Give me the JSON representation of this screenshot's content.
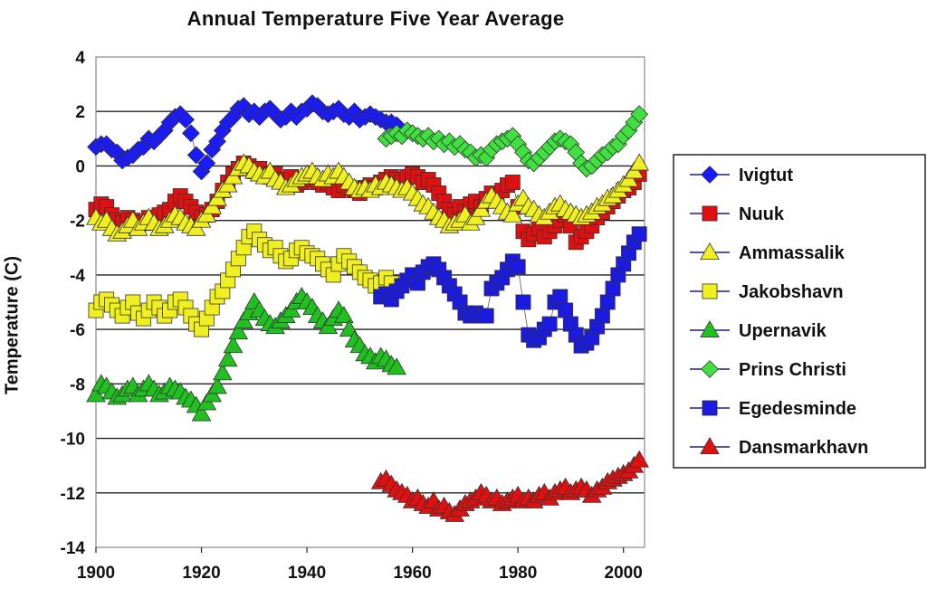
{
  "chart_data": {
    "type": "scatter",
    "title": "Annual Temperature Five Year Average",
    "xlabel": "",
    "ylabel": "Temperature (C)",
    "xlim": [
      1900,
      2004
    ],
    "ylim": [
      -14,
      4
    ],
    "xticks": [
      "1900",
      "1920",
      "1940",
      "1960",
      "1980",
      "2000"
    ],
    "yticks": [
      "4",
      "2",
      "0",
      "-2",
      "-4",
      "-6",
      "-8",
      "-10",
      "-12",
      "-14"
    ],
    "grid": "horizontal",
    "legend_position": "right",
    "series": [
      {
        "name": "Ivigtut",
        "marker": "diamond",
        "color": "#1a1aff",
        "x": [
          1900,
          1901,
          1902,
          1903,
          1904,
          1905,
          1906,
          1907,
          1908,
          1909,
          1910,
          1911,
          1912,
          1913,
          1914,
          1915,
          1916,
          1917,
          1918,
          1919,
          1920,
          1921,
          1922,
          1923,
          1924,
          1925,
          1926,
          1927,
          1928,
          1929,
          1930,
          1931,
          1932,
          1933,
          1934,
          1935,
          1936,
          1937,
          1938,
          1939,
          1940,
          1941,
          1942,
          1943,
          1944,
          1945,
          1946,
          1947,
          1948,
          1949,
          1950,
          1951,
          1952,
          1953,
          1954,
          1955,
          1956,
          1957
        ],
        "y": [
          0.7,
          0.8,
          0.8,
          0.6,
          0.5,
          0.2,
          0.3,
          0.4,
          0.6,
          0.7,
          1.0,
          0.9,
          1.1,
          1.3,
          1.6,
          1.8,
          1.9,
          1.7,
          1.2,
          0.4,
          -0.2,
          0.1,
          0.6,
          0.9,
          1.3,
          1.6,
          1.8,
          2.1,
          2.2,
          1.9,
          2.0,
          1.8,
          2.0,
          2.1,
          1.9,
          1.7,
          1.8,
          2.0,
          1.8,
          2.0,
          2.1,
          2.3,
          2.2,
          2.0,
          1.9,
          2.0,
          2.1,
          1.9,
          1.8,
          2.0,
          1.7,
          1.8,
          1.9,
          1.8,
          1.7,
          1.6,
          1.6,
          1.5
        ]
      },
      {
        "name": "Nuuk",
        "marker": "square",
        "color": "#e01010",
        "x": [
          1900,
          1901,
          1902,
          1903,
          1904,
          1905,
          1906,
          1907,
          1908,
          1909,
          1910,
          1911,
          1912,
          1913,
          1914,
          1915,
          1916,
          1917,
          1918,
          1919,
          1920,
          1921,
          1922,
          1923,
          1924,
          1925,
          1926,
          1927,
          1928,
          1929,
          1930,
          1931,
          1932,
          1933,
          1934,
          1935,
          1936,
          1937,
          1938,
          1939,
          1940,
          1941,
          1942,
          1943,
          1944,
          1945,
          1946,
          1947,
          1948,
          1949,
          1950,
          1951,
          1952,
          1953,
          1954,
          1955,
          1956,
          1957,
          1958,
          1959,
          1960,
          1961,
          1962,
          1963,
          1964,
          1965,
          1966,
          1967,
          1968,
          1969,
          1970,
          1971,
          1972,
          1973,
          1974,
          1975,
          1976,
          1977,
          1978,
          1979,
          1980,
          1981,
          1982,
          1983,
          1984,
          1985,
          1986,
          1987,
          1988,
          1989,
          1990,
          1991,
          1992,
          1993,
          1994,
          1995,
          1996,
          1997,
          1998,
          1999,
          2000,
          2001,
          2002,
          2003
        ],
        "y": [
          -1.6,
          -1.4,
          -1.5,
          -1.8,
          -2.0,
          -2.1,
          -1.9,
          -2.0,
          -2.2,
          -2.1,
          -1.9,
          -2.0,
          -1.8,
          -1.7,
          -1.6,
          -1.3,
          -1.1,
          -1.3,
          -1.5,
          -1.7,
          -1.9,
          -1.8,
          -1.6,
          -1.3,
          -0.9,
          -0.6,
          -0.3,
          -0.1,
          0.1,
          0.0,
          -0.2,
          -0.1,
          -0.3,
          -0.4,
          -0.3,
          -0.5,
          -0.6,
          -0.4,
          -0.7,
          -0.6,
          -0.5,
          -0.4,
          -0.6,
          -0.7,
          -0.6,
          -0.8,
          -0.9,
          -0.7,
          -0.8,
          -0.9,
          -1.0,
          -0.8,
          -0.7,
          -0.8,
          -0.6,
          -0.5,
          -0.4,
          -0.5,
          -0.6,
          -0.4,
          -0.3,
          -0.4,
          -0.6,
          -0.5,
          -0.7,
          -1.0,
          -1.3,
          -1.6,
          -1.8,
          -1.5,
          -1.7,
          -1.4,
          -1.3,
          -1.5,
          -1.2,
          -1.0,
          -1.1,
          -0.9,
          -0.7,
          -0.6,
          -1.5,
          -2.4,
          -2.7,
          -2.5,
          -2.3,
          -2.6,
          -2.4,
          -2.2,
          -2.0,
          -1.8,
          -2.2,
          -2.8,
          -2.6,
          -2.4,
          -2.2,
          -1.9,
          -1.7,
          -1.5,
          -1.3,
          -1.1,
          -0.9,
          -0.8,
          -0.6,
          -0.3
        ]
      },
      {
        "name": "Ammassalik",
        "marker": "triangle",
        "color": "#f0f020",
        "x": [
          1900,
          1901,
          1902,
          1903,
          1904,
          1905,
          1906,
          1907,
          1908,
          1909,
          1910,
          1911,
          1912,
          1913,
          1914,
          1915,
          1916,
          1917,
          1918,
          1919,
          1920,
          1921,
          1922,
          1923,
          1924,
          1925,
          1926,
          1927,
          1928,
          1929,
          1930,
          1931,
          1932,
          1933,
          1934,
          1935,
          1936,
          1937,
          1938,
          1939,
          1940,
          1941,
          1942,
          1943,
          1944,
          1945,
          1946,
          1947,
          1948,
          1949,
          1950,
          1951,
          1952,
          1953,
          1954,
          1955,
          1956,
          1957,
          1958,
          1959,
          1960,
          1961,
          1962,
          1963,
          1964,
          1965,
          1966,
          1967,
          1968,
          1969,
          1970,
          1971,
          1972,
          1973,
          1974,
          1975,
          1976,
          1977,
          1978,
          1979,
          1980,
          1981,
          1982,
          1983,
          1984,
          1985,
          1986,
          1987,
          1988,
          1989,
          1990,
          1991,
          1992,
          1993,
          1994,
          1995,
          1996,
          1997,
          1998,
          1999,
          2000,
          2001,
          2002,
          2003
        ],
        "y": [
          -1.9,
          -2.1,
          -2.0,
          -2.3,
          -2.5,
          -2.4,
          -2.2,
          -2.0,
          -2.3,
          -2.1,
          -1.9,
          -2.1,
          -2.3,
          -2.2,
          -2.0,
          -1.8,
          -1.9,
          -2.1,
          -2.2,
          -2.3,
          -2.0,
          -1.8,
          -1.5,
          -1.2,
          -0.9,
          -0.7,
          -0.4,
          -0.1,
          0.1,
          0.0,
          -0.2,
          -0.3,
          -0.4,
          -0.2,
          -0.5,
          -0.6,
          -0.8,
          -0.7,
          -0.5,
          -0.4,
          -0.3,
          -0.2,
          -0.4,
          -0.5,
          -0.3,
          -0.4,
          -0.2,
          -0.4,
          -0.6,
          -0.8,
          -0.9,
          -0.8,
          -0.9,
          -0.7,
          -0.8,
          -0.6,
          -0.7,
          -0.8,
          -0.9,
          -0.8,
          -1.0,
          -1.2,
          -1.4,
          -1.5,
          -1.7,
          -1.9,
          -2.0,
          -2.2,
          -2.1,
          -2.0,
          -1.8,
          -2.1,
          -1.9,
          -1.6,
          -1.3,
          -1.1,
          -1.3,
          -1.5,
          -1.7,
          -1.8,
          -1.4,
          -1.2,
          -1.5,
          -1.6,
          -1.8,
          -1.9,
          -1.7,
          -1.5,
          -1.4,
          -1.6,
          -1.7,
          -1.8,
          -1.9,
          -1.8,
          -1.7,
          -1.5,
          -1.4,
          -1.2,
          -1.1,
          -0.9,
          -0.7,
          -0.5,
          -0.2,
          0.1
        ]
      },
      {
        "name": "Jakobshavn",
        "marker": "square",
        "color": "#f0f020",
        "x": [
          1900,
          1901,
          1902,
          1903,
          1904,
          1905,
          1906,
          1907,
          1908,
          1909,
          1910,
          1911,
          1912,
          1913,
          1914,
          1915,
          1916,
          1917,
          1918,
          1919,
          1920,
          1921,
          1922,
          1923,
          1924,
          1925,
          1926,
          1927,
          1928,
          1929,
          1930,
          1931,
          1932,
          1933,
          1934,
          1935,
          1936,
          1937,
          1938,
          1939,
          1940,
          1941,
          1942,
          1943,
          1944,
          1945,
          1946,
          1947,
          1948,
          1949,
          1950,
          1951,
          1952,
          1953,
          1954,
          1955,
          1956
        ],
        "y": [
          -5.3,
          -5.0,
          -4.9,
          -5.1,
          -5.3,
          -5.5,
          -5.2,
          -5.0,
          -5.4,
          -5.6,
          -5.3,
          -5.0,
          -5.2,
          -5.5,
          -5.3,
          -5.0,
          -4.9,
          -5.2,
          -5.5,
          -5.8,
          -6.0,
          -5.6,
          -5.2,
          -4.8,
          -4.6,
          -4.2,
          -3.8,
          -3.4,
          -3.0,
          -2.6,
          -2.4,
          -2.7,
          -2.9,
          -3.1,
          -3.0,
          -3.3,
          -3.5,
          -3.4,
          -3.1,
          -3.0,
          -3.2,
          -3.3,
          -3.4,
          -3.6,
          -3.8,
          -4.0,
          -3.6,
          -3.3,
          -3.5,
          -3.7,
          -3.9,
          -4.1,
          -4.2,
          -4.4,
          -4.3,
          -4.1,
          -4.3
        ]
      },
      {
        "name": "Upernavik",
        "marker": "triangle",
        "color": "#20c020",
        "x": [
          1900,
          1901,
          1902,
          1903,
          1904,
          1905,
          1906,
          1907,
          1908,
          1909,
          1910,
          1911,
          1912,
          1913,
          1914,
          1915,
          1916,
          1917,
          1918,
          1919,
          1920,
          1921,
          1922,
          1923,
          1924,
          1925,
          1926,
          1927,
          1928,
          1929,
          1930,
          1931,
          1932,
          1933,
          1934,
          1935,
          1936,
          1937,
          1938,
          1939,
          1940,
          1941,
          1942,
          1943,
          1944,
          1945,
          1946,
          1947,
          1948,
          1949,
          1950,
          1951,
          1952,
          1953,
          1954,
          1955,
          1956,
          1957
        ],
        "y": [
          -8.4,
          -8.0,
          -8.1,
          -8.3,
          -8.5,
          -8.4,
          -8.2,
          -8.1,
          -8.4,
          -8.2,
          -8.0,
          -8.2,
          -8.4,
          -8.3,
          -8.1,
          -8.2,
          -8.3,
          -8.5,
          -8.6,
          -8.8,
          -9.1,
          -8.7,
          -8.4,
          -8.1,
          -7.6,
          -7.1,
          -6.6,
          -6.1,
          -5.7,
          -5.4,
          -5.0,
          -5.3,
          -5.6,
          -5.8,
          -5.9,
          -5.7,
          -5.5,
          -5.3,
          -5.0,
          -4.8,
          -5.0,
          -5.2,
          -5.5,
          -5.7,
          -5.9,
          -5.6,
          -5.3,
          -5.5,
          -6.0,
          -6.4,
          -6.6,
          -6.9,
          -7.0,
          -7.2,
          -7.0,
          -7.1,
          -7.3,
          -7.4
        ]
      },
      {
        "name": "Prins Christi",
        "marker": "diamond",
        "color": "#40e040",
        "x": [
          1955,
          1956,
          1957,
          1958,
          1959,
          1960,
          1961,
          1962,
          1963,
          1964,
          1965,
          1966,
          1967,
          1968,
          1969,
          1970,
          1971,
          1972,
          1973,
          1974,
          1975,
          1976,
          1977,
          1978,
          1979,
          1980,
          1981,
          1982,
          1983,
          1984,
          1985,
          1986,
          1987,
          1988,
          1989,
          1990,
          1991,
          1992,
          1993,
          1994,
          1995,
          1996,
          1997,
          1998,
          1999,
          2000,
          2001,
          2002,
          2003
        ],
        "y": [
          1.0,
          1.1,
          1.2,
          1.1,
          1.3,
          1.2,
          1.1,
          1.0,
          1.1,
          0.9,
          1.0,
          0.8,
          0.9,
          0.7,
          0.8,
          0.6,
          0.5,
          0.3,
          0.4,
          0.3,
          0.6,
          0.8,
          0.9,
          1.0,
          1.1,
          0.8,
          0.5,
          0.2,
          0.1,
          0.3,
          0.5,
          0.7,
          0.9,
          1.0,
          0.9,
          0.8,
          0.5,
          0.1,
          -0.1,
          0.0,
          0.2,
          0.4,
          0.5,
          0.7,
          0.8,
          1.1,
          1.3,
          1.6,
          1.9
        ]
      },
      {
        "name": "Egedesminde",
        "marker": "square",
        "color": "#1a1ae0",
        "x": [
          1954,
          1955,
          1956,
          1957,
          1958,
          1959,
          1960,
          1961,
          1962,
          1963,
          1964,
          1965,
          1966,
          1967,
          1968,
          1969,
          1970,
          1971,
          1972,
          1973,
          1974,
          1975,
          1976,
          1977,
          1978,
          1979,
          1980,
          1981,
          1982,
          1983,
          1984,
          1985,
          1986,
          1987,
          1988,
          1989,
          1990,
          1991,
          1992,
          1993,
          1994,
          1995,
          1996,
          1997,
          1998,
          1999,
          2000,
          2001,
          2002,
          2003
        ],
        "y": [
          -4.8,
          -4.7,
          -4.9,
          -4.6,
          -4.4,
          -4.2,
          -4.0,
          -4.3,
          -3.9,
          -3.7,
          -3.6,
          -3.8,
          -4.1,
          -4.4,
          -4.7,
          -5.0,
          -5.4,
          -5.5,
          -5.4,
          -5.5,
          -5.5,
          -4.5,
          -4.3,
          -4.1,
          -3.8,
          -3.5,
          -3.7,
          -5.0,
          -6.2,
          -6.4,
          -6.3,
          -6.0,
          -5.8,
          -5.0,
          -4.8,
          -5.3,
          -5.8,
          -6.2,
          -6.6,
          -6.5,
          -6.3,
          -5.9,
          -5.5,
          -5.0,
          -4.5,
          -4.0,
          -3.6,
          -3.2,
          -2.8,
          -2.5
        ]
      },
      {
        "name": "Dansmarkhavn",
        "marker": "triangle",
        "color": "#e01010",
        "x": [
          1954,
          1955,
          1956,
          1957,
          1958,
          1959,
          1960,
          1961,
          1962,
          1963,
          1964,
          1965,
          1966,
          1967,
          1968,
          1969,
          1970,
          1971,
          1972,
          1973,
          1974,
          1975,
          1976,
          1977,
          1978,
          1979,
          1980,
          1981,
          1982,
          1983,
          1984,
          1985,
          1986,
          1987,
          1988,
          1989,
          1990,
          1991,
          1992,
          1993,
          1994,
          1995,
          1996,
          1997,
          1998,
          1999,
          2000,
          2001,
          2002,
          2003
        ],
        "y": [
          -11.6,
          -11.5,
          -11.7,
          -11.9,
          -12.0,
          -12.1,
          -12.3,
          -12.2,
          -12.4,
          -12.5,
          -12.3,
          -12.6,
          -12.5,
          -12.7,
          -12.8,
          -12.6,
          -12.4,
          -12.3,
          -12.2,
          -12.0,
          -12.1,
          -12.3,
          -12.2,
          -12.4,
          -12.3,
          -12.2,
          -12.1,
          -12.3,
          -12.2,
          -12.3,
          -12.1,
          -12.0,
          -12.2,
          -12.0,
          -11.9,
          -11.8,
          -12.0,
          -11.9,
          -11.8,
          -11.9,
          -12.1,
          -11.9,
          -11.8,
          -11.6,
          -11.5,
          -11.4,
          -11.3,
          -11.2,
          -11.0,
          -10.8
        ]
      }
    ]
  }
}
